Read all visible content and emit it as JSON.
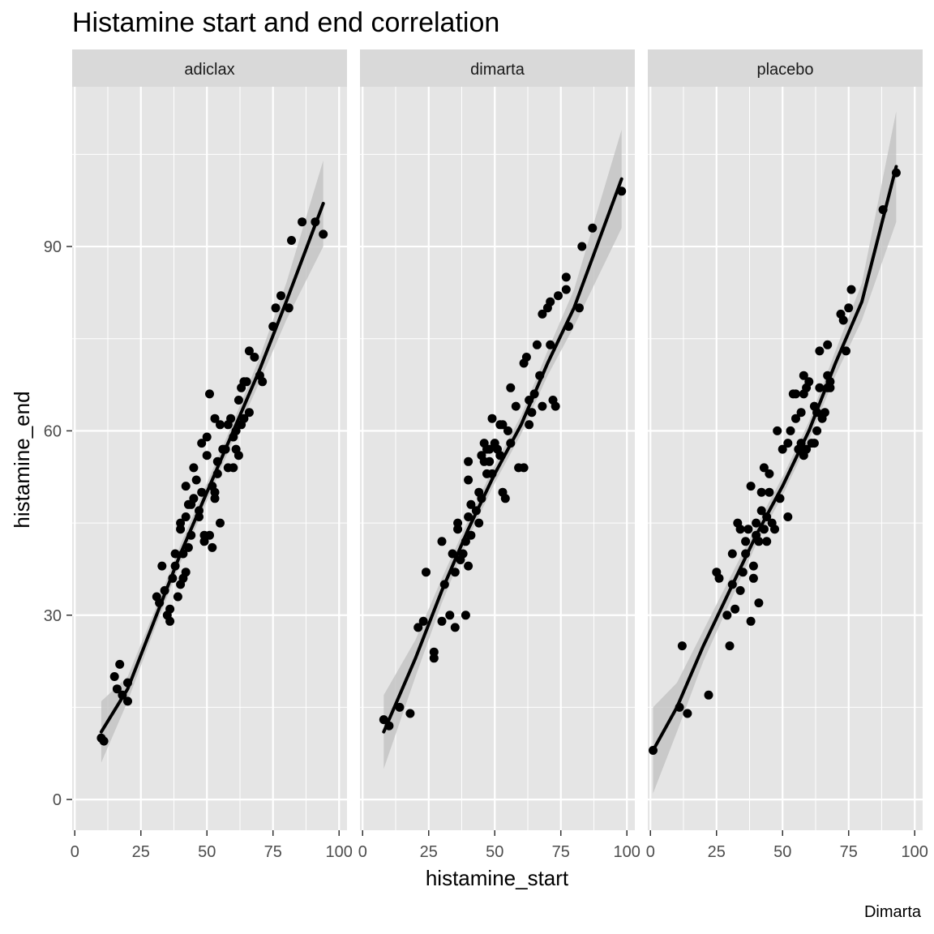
{
  "chart_data": {
    "type": "scatter",
    "title": "Histamine start and end correlation",
    "xlabel": "histamine_start",
    "ylabel": "histamine_end",
    "caption": "Dimarta",
    "xlim": [
      -1,
      103
    ],
    "ylim": [
      -5,
      116
    ],
    "x_ticks": [
      0,
      25,
      50,
      75,
      100
    ],
    "x_tick_labels": [
      "0",
      "25",
      "50",
      "75",
      "100"
    ],
    "y_ticks": [
      0,
      30,
      60,
      90
    ],
    "y_tick_labels": [
      "0",
      "30",
      "60",
      "90"
    ],
    "grid": true,
    "colors": {
      "panel_bg": "#e5e5e5",
      "strip_bg": "#d9d9d9",
      "grid": "#ffffff",
      "points": "#000000",
      "smooth_line": "#000000",
      "ribbon": "#bfbfbf",
      "tick_text": "#4d4d4d"
    },
    "panels": [
      {
        "label": "adiclax",
        "points": [
          [
            10,
            10
          ],
          [
            11,
            9.5
          ],
          [
            15,
            20
          ],
          [
            16,
            18
          ],
          [
            17,
            22
          ],
          [
            18,
            17
          ],
          [
            20,
            19
          ],
          [
            20,
            16
          ],
          [
            31,
            33
          ],
          [
            32,
            32
          ],
          [
            33,
            38
          ],
          [
            34,
            34
          ],
          [
            35,
            30
          ],
          [
            36,
            31
          ],
          [
            36,
            29
          ],
          [
            37,
            36
          ],
          [
            38,
            40
          ],
          [
            38,
            38
          ],
          [
            39,
            33
          ],
          [
            40,
            44
          ],
          [
            40,
            45
          ],
          [
            40,
            35
          ],
          [
            41,
            40
          ],
          [
            41,
            36
          ],
          [
            42,
            37
          ],
          [
            42,
            46
          ],
          [
            42,
            51
          ],
          [
            43,
            48
          ],
          [
            43,
            41
          ],
          [
            44,
            43
          ],
          [
            44,
            48
          ],
          [
            45,
            49
          ],
          [
            45,
            54
          ],
          [
            46,
            52
          ],
          [
            47,
            46
          ],
          [
            47,
            47
          ],
          [
            48,
            58
          ],
          [
            48,
            50
          ],
          [
            49,
            42
          ],
          [
            49,
            43
          ],
          [
            50,
            59
          ],
          [
            50,
            56
          ],
          [
            51,
            66
          ],
          [
            51,
            43
          ],
          [
            52,
            51
          ],
          [
            52,
            41
          ],
          [
            53,
            62
          ],
          [
            53,
            50
          ],
          [
            53,
            49
          ],
          [
            54,
            53
          ],
          [
            54,
            55
          ],
          [
            55,
            45
          ],
          [
            55,
            61
          ],
          [
            56,
            57
          ],
          [
            57,
            57
          ],
          [
            58,
            54
          ],
          [
            58,
            61
          ],
          [
            59,
            62
          ],
          [
            60,
            54
          ],
          [
            60,
            59
          ],
          [
            61,
            60
          ],
          [
            61,
            57
          ],
          [
            62,
            56
          ],
          [
            62,
            65
          ],
          [
            63,
            67
          ],
          [
            63,
            61
          ],
          [
            64,
            68
          ],
          [
            64,
            62
          ],
          [
            65,
            68
          ],
          [
            66,
            73
          ],
          [
            66,
            63
          ],
          [
            68,
            72
          ],
          [
            70,
            69
          ],
          [
            71,
            68
          ],
          [
            75,
            77
          ],
          [
            76,
            80
          ],
          [
            78,
            82
          ],
          [
            81,
            80
          ],
          [
            82,
            91
          ],
          [
            86,
            94
          ],
          [
            91,
            94
          ],
          [
            94,
            92
          ]
        ],
        "fit": [
          [
            10,
            11
          ],
          [
            20,
            18
          ],
          [
            30,
            29
          ],
          [
            40,
            40
          ],
          [
            50,
            50
          ],
          [
            60,
            60
          ],
          [
            70,
            70
          ],
          [
            80,
            81
          ],
          [
            94,
            97
          ]
        ],
        "ribbon_halfwidth": [
          5,
          2,
          1.5,
          1.5,
          1.5,
          1.5,
          2,
          3,
          7
        ]
      },
      {
        "label": "dimarta",
        "points": [
          [
            8,
            13
          ],
          [
            10,
            12
          ],
          [
            14,
            15
          ],
          [
            18,
            14
          ],
          [
            21,
            28
          ],
          [
            23,
            29
          ],
          [
            24,
            37
          ],
          [
            27,
            24
          ],
          [
            27,
            23
          ],
          [
            30,
            42
          ],
          [
            30,
            29
          ],
          [
            31,
            35
          ],
          [
            33,
            30
          ],
          [
            34,
            40
          ],
          [
            35,
            37
          ],
          [
            35,
            28
          ],
          [
            36,
            45
          ],
          [
            36,
            44
          ],
          [
            37,
            39
          ],
          [
            38,
            40
          ],
          [
            39,
            30
          ],
          [
            39,
            42
          ],
          [
            40,
            46
          ],
          [
            40,
            55
          ],
          [
            40,
            52
          ],
          [
            40,
            38
          ],
          [
            41,
            48
          ],
          [
            41,
            43
          ],
          [
            43,
            47
          ],
          [
            44,
            50
          ],
          [
            44,
            45
          ],
          [
            45,
            49
          ],
          [
            45,
            56
          ],
          [
            46,
            58
          ],
          [
            46,
            55
          ],
          [
            47,
            57
          ],
          [
            47,
            53
          ],
          [
            48,
            55
          ],
          [
            48,
            57
          ],
          [
            49,
            62
          ],
          [
            49,
            53
          ],
          [
            50,
            58
          ],
          [
            51,
            57
          ],
          [
            52,
            61
          ],
          [
            52,
            56
          ],
          [
            53,
            50
          ],
          [
            53,
            61
          ],
          [
            54,
            49
          ],
          [
            55,
            60
          ],
          [
            56,
            67
          ],
          [
            56,
            58
          ],
          [
            58,
            64
          ],
          [
            59,
            54
          ],
          [
            61,
            54
          ],
          [
            61,
            71
          ],
          [
            62,
            72
          ],
          [
            63,
            65
          ],
          [
            63,
            61
          ],
          [
            64,
            63
          ],
          [
            65,
            66
          ],
          [
            66,
            74
          ],
          [
            67,
            69
          ],
          [
            68,
            79
          ],
          [
            68,
            64
          ],
          [
            70,
            80
          ],
          [
            71,
            74
          ],
          [
            71,
            81
          ],
          [
            72,
            65
          ],
          [
            73,
            64
          ],
          [
            74,
            82
          ],
          [
            77,
            85
          ],
          [
            77,
            83
          ],
          [
            78,
            77
          ],
          [
            82,
            80
          ],
          [
            83,
            90
          ],
          [
            87,
            93
          ],
          [
            98,
            99
          ]
        ],
        "fit": [
          [
            8,
            11
          ],
          [
            20,
            23
          ],
          [
            30,
            34
          ],
          [
            40,
            44
          ],
          [
            50,
            53
          ],
          [
            60,
            61
          ],
          [
            70,
            71
          ],
          [
            80,
            80
          ],
          [
            98,
            101
          ]
        ],
        "ribbon_halfwidth": [
          6,
          3,
          2,
          1.5,
          1.5,
          1.5,
          2,
          3,
          8
        ]
      },
      {
        "label": "placebo",
        "points": [
          [
            1,
            8
          ],
          [
            11,
            15
          ],
          [
            12,
            25
          ],
          [
            14,
            14
          ],
          [
            22,
            17
          ],
          [
            25,
            37
          ],
          [
            26,
            36
          ],
          [
            29,
            30
          ],
          [
            30,
            25
          ],
          [
            31,
            40
          ],
          [
            31,
            35
          ],
          [
            32,
            31
          ],
          [
            33,
            45
          ],
          [
            34,
            34
          ],
          [
            34,
            44
          ],
          [
            35,
            37
          ],
          [
            36,
            40
          ],
          [
            36,
            42
          ],
          [
            37,
            44
          ],
          [
            38,
            29
          ],
          [
            38,
            51
          ],
          [
            39,
            38
          ],
          [
            39,
            36
          ],
          [
            40,
            43
          ],
          [
            40,
            45
          ],
          [
            41,
            42
          ],
          [
            41,
            32
          ],
          [
            42,
            50
          ],
          [
            42,
            47
          ],
          [
            43,
            44
          ],
          [
            43,
            54
          ],
          [
            44,
            42
          ],
          [
            44,
            46
          ],
          [
            45,
            50
          ],
          [
            45,
            53
          ],
          [
            46,
            45
          ],
          [
            47,
            44
          ],
          [
            48,
            60
          ],
          [
            49,
            49
          ],
          [
            50,
            57
          ],
          [
            52,
            46
          ],
          [
            52,
            58
          ],
          [
            53,
            60
          ],
          [
            54,
            66
          ],
          [
            55,
            66
          ],
          [
            55,
            62
          ],
          [
            56,
            57
          ],
          [
            57,
            58
          ],
          [
            57,
            63
          ],
          [
            58,
            69
          ],
          [
            58,
            66
          ],
          [
            58,
            56
          ],
          [
            59,
            57
          ],
          [
            59,
            67
          ],
          [
            60,
            68
          ],
          [
            61,
            58
          ],
          [
            62,
            64
          ],
          [
            62,
            58
          ],
          [
            63,
            60
          ],
          [
            63,
            63
          ],
          [
            64,
            67
          ],
          [
            64,
            73
          ],
          [
            65,
            62
          ],
          [
            66,
            63
          ],
          [
            67,
            74
          ],
          [
            67,
            69
          ],
          [
            67,
            67
          ],
          [
            68,
            67
          ],
          [
            68,
            68
          ],
          [
            72,
            79
          ],
          [
            73,
            78
          ],
          [
            74,
            73
          ],
          [
            75,
            80
          ],
          [
            76,
            83
          ],
          [
            88,
            96
          ],
          [
            93,
            102
          ]
        ],
        "fit": [
          [
            1,
            8
          ],
          [
            10,
            15
          ],
          [
            20,
            25
          ],
          [
            30,
            34
          ],
          [
            40,
            43
          ],
          [
            50,
            51
          ],
          [
            60,
            60
          ],
          [
            70,
            71
          ],
          [
            80,
            81
          ],
          [
            93,
            103
          ]
        ],
        "ribbon_halfwidth": [
          7,
          4,
          2.5,
          2,
          1.5,
          1.5,
          1.5,
          2,
          3,
          9
        ]
      }
    ]
  }
}
